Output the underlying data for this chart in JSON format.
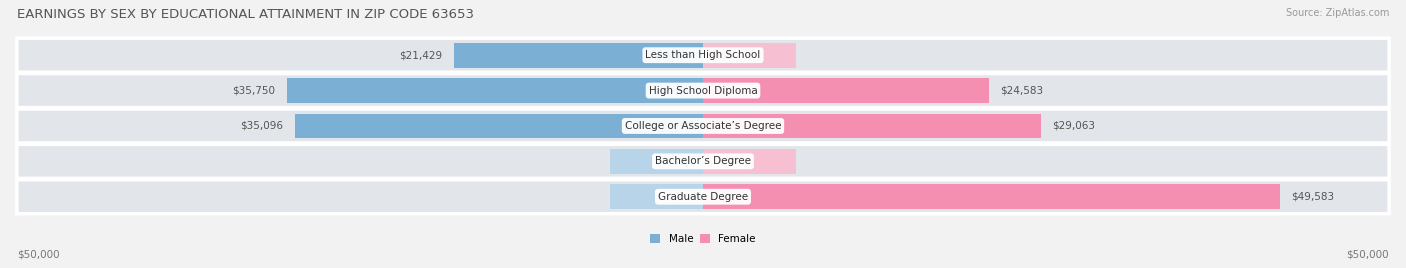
{
  "title": "EARNINGS BY SEX BY EDUCATIONAL ATTAINMENT IN ZIP CODE 63653",
  "source": "Source: ZipAtlas.com",
  "categories": [
    "Less than High School",
    "High School Diploma",
    "College or Associate’s Degree",
    "Bachelor’s Degree",
    "Graduate Degree"
  ],
  "male_values": [
    21429,
    35750,
    35096,
    0,
    0
  ],
  "female_values": [
    0,
    24583,
    29063,
    0,
    49583
  ],
  "male_placeholder": [
    0,
    0,
    0,
    8000,
    8000
  ],
  "female_placeholder": [
    8000,
    0,
    0,
    8000,
    0
  ],
  "male_color": "#7bafd4",
  "female_color": "#f48fb1",
  "male_placeholder_color": "#b8d4e8",
  "female_placeholder_color": "#f7bfd2",
  "max_val": 50000,
  "bg_color": "#f2f2f2",
  "row_bg_color": "#e2e5ea",
  "title_fontsize": 9.5,
  "source_fontsize": 7,
  "bar_label_fontsize": 7.5,
  "category_fontsize": 7.5,
  "axis_label_fontsize": 7.5,
  "footer_left": "$50,000",
  "footer_right": "$50,000"
}
